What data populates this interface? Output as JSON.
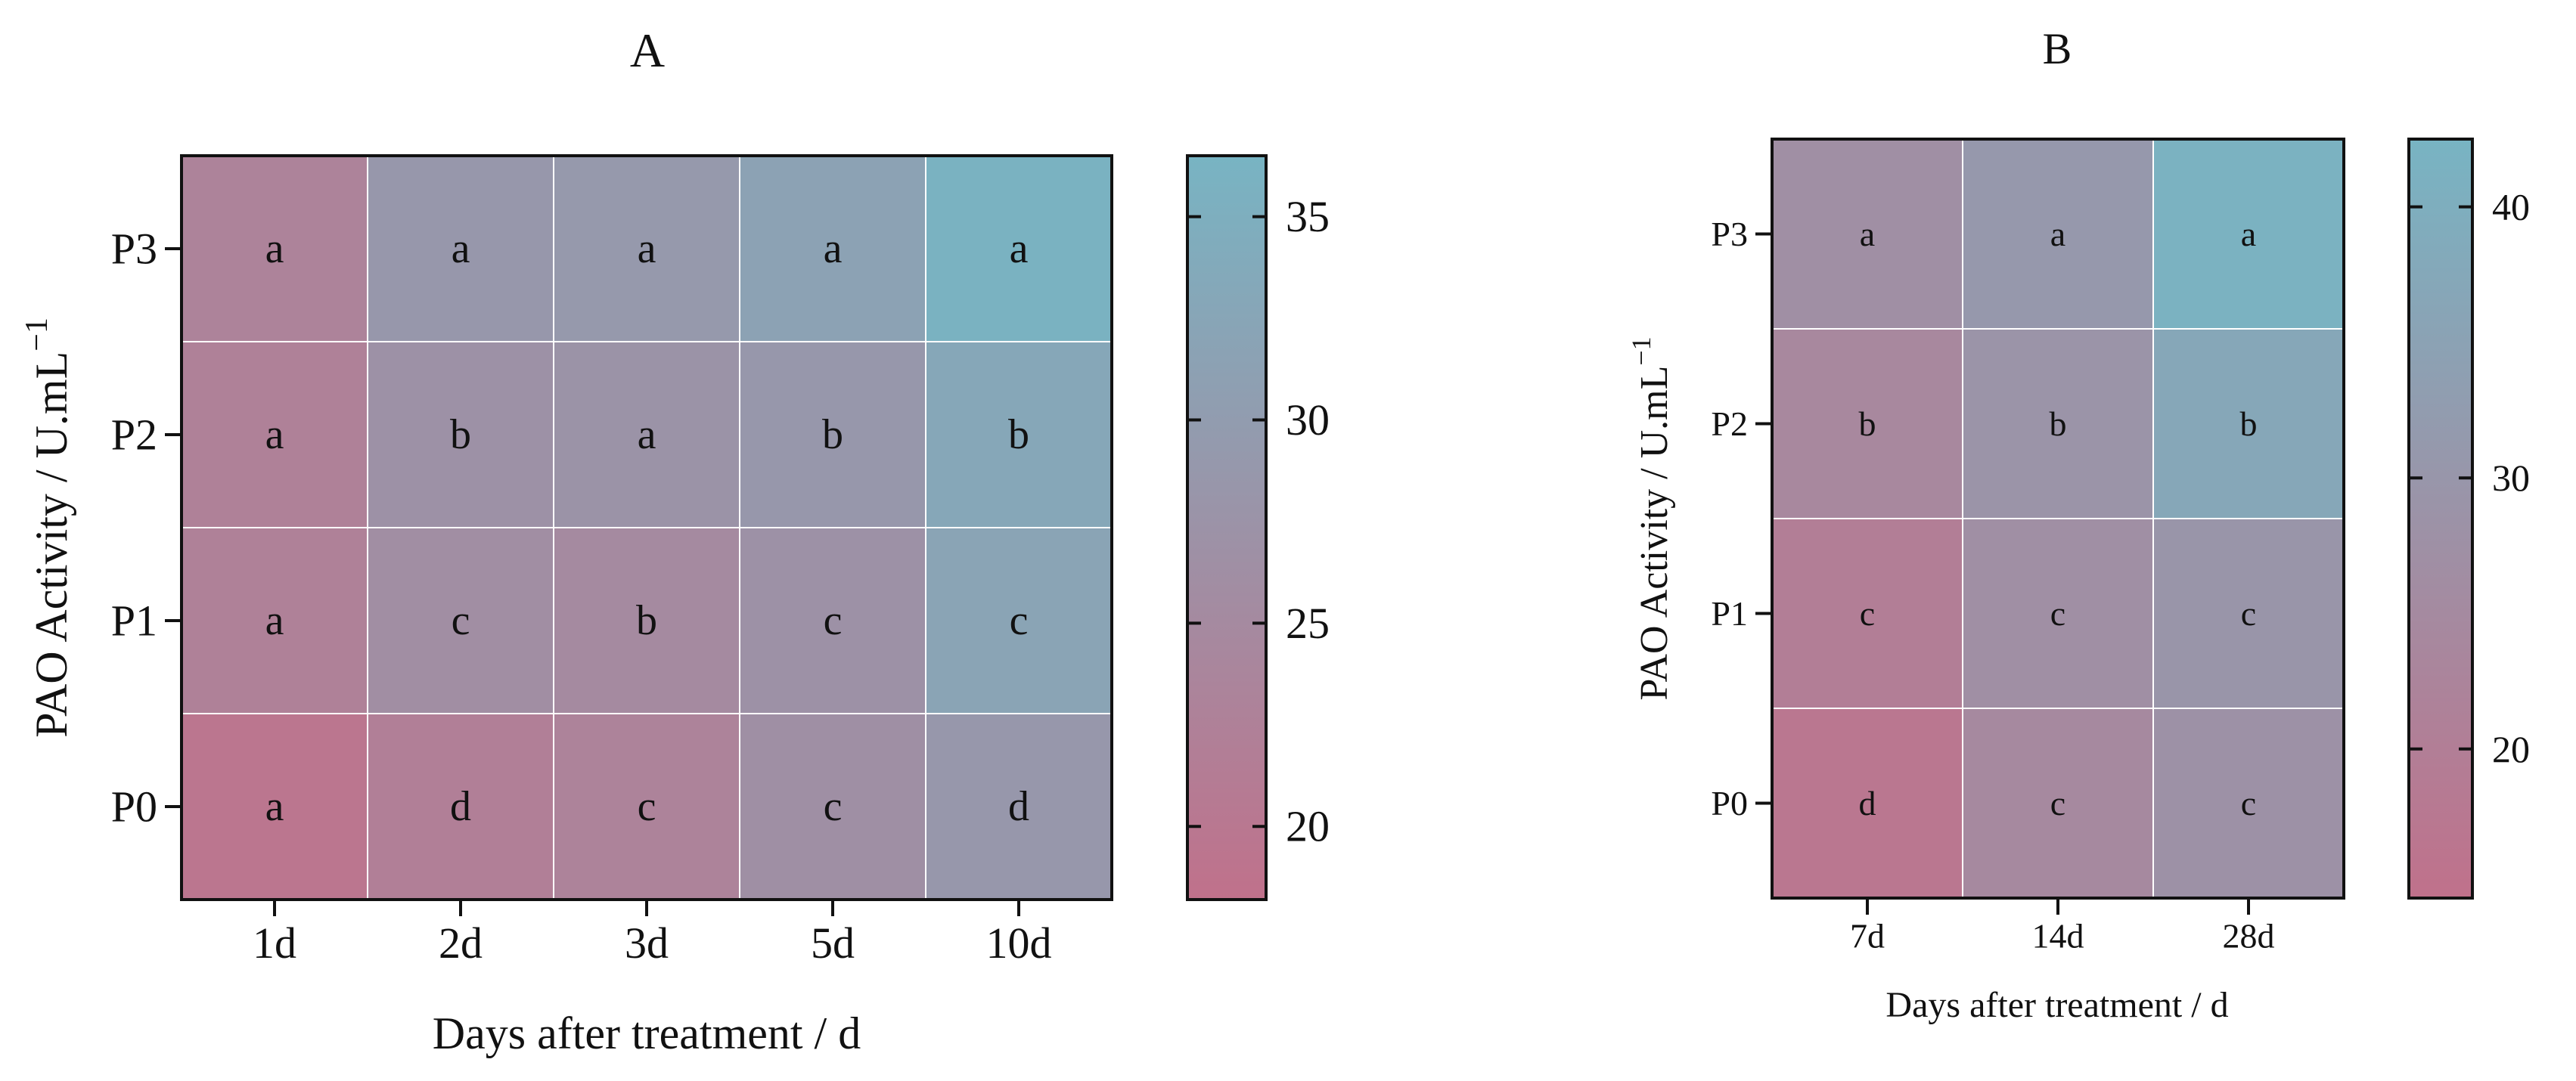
{
  "colors": {
    "low": "#c0718b",
    "high": "#78b4c3",
    "grid": "#ffffff",
    "axis": "#111111"
  },
  "chart_data": [
    {
      "type": "heatmap",
      "title": "A",
      "xlabel": "Days after treatment / d",
      "ylabel": "PAO Activity / U.mL",
      "ylabel_sup": "−1",
      "x": [
        "1d",
        "2d",
        "3d",
        "5d",
        "10d"
      ],
      "y": [
        "P0",
        "P1",
        "P2",
        "P3"
      ],
      "values": [
        [
          19.5,
          22.0,
          23.0,
          26.5,
          28.5
        ],
        [
          22.5,
          26.0,
          25.0,
          27.0,
          32.0
        ],
        [
          22.5,
          27.0,
          27.5,
          28.5,
          33.0
        ],
        [
          23.0,
          28.5,
          29.0,
          31.5,
          36.0
        ]
      ],
      "letters": [
        [
          "a",
          "d",
          "c",
          "c",
          "d"
        ],
        [
          "a",
          "c",
          "b",
          "c",
          "c"
        ],
        [
          "a",
          "b",
          "a",
          "b",
          "b"
        ],
        [
          "a",
          "a",
          "a",
          "a",
          "a"
        ]
      ],
      "colorbar": {
        "range": [
          18.2,
          36.5
        ],
        "ticks": [
          20,
          25,
          30,
          35
        ]
      }
    },
    {
      "type": "heatmap",
      "title": "B",
      "xlabel": "Days after treatment / d",
      "ylabel": "PAO Activity / U.mL",
      "ylabel_sup": "−1",
      "x": [
        "7d",
        "14d",
        "28d"
      ],
      "y": [
        "P0",
        "P1",
        "P2",
        "P3"
      ],
      "values": [
        [
          17.0,
          24.5,
          28.0
        ],
        [
          20.0,
          27.0,
          29.5
        ],
        [
          24.0,
          29.0,
          37.0
        ],
        [
          27.0,
          31.0,
          41.5
        ]
      ],
      "letters": [
        [
          "d",
          "c",
          "c"
        ],
        [
          "c",
          "c",
          "c"
        ],
        [
          "b",
          "b",
          "b"
        ],
        [
          "a",
          "a",
          "a"
        ]
      ],
      "colorbar": {
        "range": [
          14.5,
          42.5
        ],
        "ticks": [
          20,
          30,
          40
        ]
      }
    }
  ]
}
